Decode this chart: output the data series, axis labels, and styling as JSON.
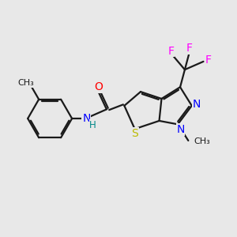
{
  "bg_color": "#e8e8e8",
  "bond_color": "#1a1a1a",
  "bond_width": 1.6,
  "atom_colors": {
    "O": "#ff0000",
    "N": "#0000ff",
    "S": "#bbbb00",
    "H": "#008888",
    "F": "#ff00ff",
    "C": "#1a1a1a"
  },
  "font_size_atom": 10,
  "font_size_small": 8.5,
  "font_size_methyl": 8
}
